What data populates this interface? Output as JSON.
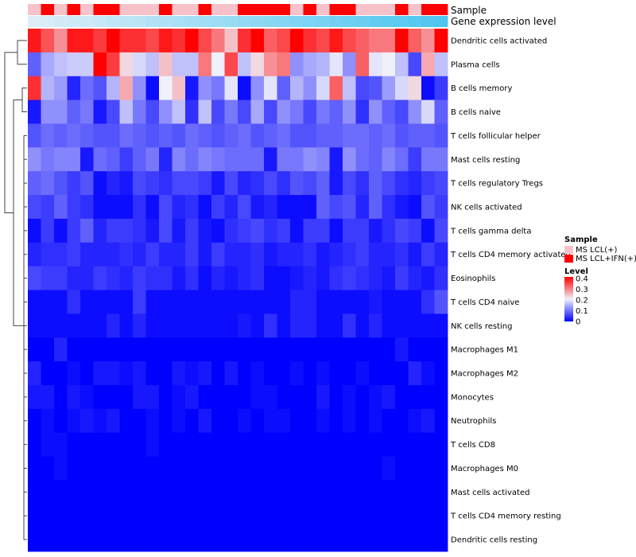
{
  "chart_data": {
    "type": "heatmap",
    "title": "",
    "annotation_tracks": [
      {
        "label": "Sample"
      },
      {
        "label": "Gene expression level"
      }
    ],
    "sample_groups": [
      "LCL",
      "IFN",
      "LCL",
      "IFN",
      "LCL",
      "IFN",
      "IFN",
      "LCL",
      "LCL",
      "LCL",
      "IFN",
      "LCL",
      "LCL",
      "IFN",
      "LCL",
      "LCL",
      "IFN",
      "IFN",
      "IFN",
      "IFN",
      "LCL",
      "IFN",
      "LCL",
      "IFN",
      "IFN",
      "LCL",
      "LCL",
      "LCL",
      "IFN",
      "LCL",
      "IFN",
      "IFN"
    ],
    "rows": [
      "Dendritic cells activated",
      "Plasma cells",
      "B cells memory",
      "B cells naive",
      "T cells follicular helper",
      "Mast cells resting",
      "T cells regulatory  Tregs",
      "NK cells activated",
      "T cells gamma delta",
      "T cells CD4 memory activated",
      "Eosinophils",
      "T cells CD4 naive",
      "NK cells resting",
      "Macrophages M1",
      "Macrophages M2",
      "Monocytes",
      "Neutrophils",
      "T cells CD8",
      "Macrophages M0",
      "Mast cells activated",
      "T cells CD4 memory resting",
      "Dendritic cells resting"
    ],
    "values": [
      [
        0.38,
        0.33,
        0.28,
        0.38,
        0.38,
        0.35,
        0.4,
        0.36,
        0.36,
        0.34,
        0.38,
        0.36,
        0.4,
        0.34,
        0.3,
        0.24,
        0.36,
        0.4,
        0.32,
        0.34,
        0.4,
        0.36,
        0.34,
        0.38,
        0.34,
        0.32,
        0.3,
        0.3,
        0.4,
        0.32,
        0.28,
        0.4
      ],
      [
        0.08,
        0.14,
        0.16,
        0.17,
        0.17,
        0.4,
        0.35,
        0.22,
        0.18,
        0.16,
        0.24,
        0.16,
        0.16,
        0.3,
        0.2,
        0.34,
        0.16,
        0.22,
        0.28,
        0.3,
        0.12,
        0.14,
        0.15,
        0.19,
        0.12,
        0.32,
        0.19,
        0.2,
        0.16,
        0.06,
        0.26,
        0.16
      ],
      [
        0.36,
        0.15,
        0.13,
        0.03,
        0.09,
        0.07,
        0.15,
        0.26,
        0.12,
        0.01,
        0.2,
        0.24,
        0.02,
        0.12,
        0.1,
        0.19,
        0.01,
        0.12,
        0.19,
        0.08,
        0.15,
        0.12,
        0.18,
        0.32,
        0.16,
        0.06,
        0.07,
        0.13,
        0.18,
        0.22,
        0.01,
        0.05
      ],
      [
        0.02,
        0.12,
        0.12,
        0.08,
        0.1,
        0.02,
        0.06,
        0.16,
        0.1,
        0.06,
        0.12,
        0.16,
        0.04,
        0.16,
        0.06,
        0.1,
        0.06,
        0.14,
        0.06,
        0.12,
        0.1,
        0.06,
        0.1,
        0.08,
        0.12,
        0.04,
        0.12,
        0.08,
        0.06,
        0.12,
        0.18,
        0.08
      ],
      [
        0.07,
        0.09,
        0.08,
        0.09,
        0.08,
        0.07,
        0.07,
        0.09,
        0.08,
        0.07,
        0.08,
        0.07,
        0.09,
        0.08,
        0.07,
        0.08,
        0.09,
        0.07,
        0.08,
        0.09,
        0.07,
        0.07,
        0.08,
        0.08,
        0.09,
        0.09,
        0.08,
        0.09,
        0.07,
        0.08,
        0.08,
        0.07
      ],
      [
        0.12,
        0.1,
        0.11,
        0.11,
        0.02,
        0.09,
        0.08,
        0.05,
        0.08,
        0.1,
        0.03,
        0.11,
        0.09,
        0.11,
        0.1,
        0.09,
        0.09,
        0.09,
        0.02,
        0.1,
        0.1,
        0.12,
        0.11,
        0.02,
        0.12,
        0.09,
        0.08,
        0.11,
        0.09,
        0.05,
        0.1,
        0.1
      ],
      [
        0.08,
        0.09,
        0.07,
        0.05,
        0.07,
        0.01,
        0.03,
        0.02,
        0.06,
        0.05,
        0.04,
        0.06,
        0.06,
        0.05,
        0.02,
        0.06,
        0.03,
        0.04,
        0.06,
        0.04,
        0.07,
        0.06,
        0.08,
        0.02,
        0.06,
        0.04,
        0.08,
        0.06,
        0.04,
        0.03,
        0.05,
        0.06
      ],
      [
        0.06,
        0.05,
        0.08,
        0.05,
        0.04,
        0.01,
        0.01,
        0.01,
        0.04,
        0.01,
        0.06,
        0.03,
        0.04,
        0.01,
        0.05,
        0.03,
        0.06,
        0.02,
        0.03,
        0.01,
        0.01,
        0.01,
        0.08,
        0.06,
        0.07,
        0.03,
        0.08,
        0.04,
        0.02,
        0.01,
        0.07,
        0.05
      ],
      [
        0.01,
        0.05,
        0.01,
        0.05,
        0.08,
        0.03,
        0.05,
        0.05,
        0.04,
        0.02,
        0.06,
        0.02,
        0.05,
        0.02,
        0.01,
        0.04,
        0.05,
        0.06,
        0.04,
        0.05,
        0.01,
        0.05,
        0.05,
        0.01,
        0.05,
        0.05,
        0.02,
        0.04,
        0.06,
        0.05,
        0.01,
        0.06
      ],
      [
        0.03,
        0.04,
        0.04,
        0.05,
        0.03,
        0.03,
        0.03,
        0.04,
        0.03,
        0.05,
        0.03,
        0.03,
        0.05,
        0.02,
        0.05,
        0.03,
        0.03,
        0.04,
        0.02,
        0.03,
        0.03,
        0.04,
        0.02,
        0.03,
        0.04,
        0.05,
        0.03,
        0.03,
        0.04,
        0.02,
        0.05,
        0.03
      ],
      [
        0.06,
        0.05,
        0.05,
        0.03,
        0.03,
        0.05,
        0.04,
        0.03,
        0.05,
        0.04,
        0.04,
        0.02,
        0.04,
        0.01,
        0.03,
        0.02,
        0.03,
        0.04,
        0.01,
        0.01,
        0.02,
        0.03,
        0.02,
        0.04,
        0.05,
        0.04,
        0.03,
        0.02,
        0.05,
        0.03,
        0.02,
        0.04
      ],
      [
        0.01,
        0.01,
        0.01,
        0.04,
        0.01,
        0.01,
        0.01,
        0.01,
        0.05,
        0.01,
        0.01,
        0.01,
        0.01,
        0.01,
        0.01,
        0.01,
        0.01,
        0.01,
        0.01,
        0.01,
        0.03,
        0.03,
        0.01,
        0.01,
        0.01,
        0.01,
        0.02,
        0.01,
        0.01,
        0.01,
        0.04,
        0.07
      ],
      [
        0.01,
        0.01,
        0.01,
        0.01,
        0.01,
        0.01,
        0.03,
        0.01,
        0.03,
        0.01,
        0.01,
        0.01,
        0.01,
        0.01,
        0.01,
        0.01,
        0.02,
        0.01,
        0.04,
        0.01,
        0.03,
        0.03,
        0.01,
        0.01,
        0.04,
        0.01,
        0.03,
        0.01,
        0.01,
        0.01,
        0.01,
        0.01
      ],
      [
        0.0,
        0.0,
        0.03,
        0.0,
        0.0,
        0.0,
        0.0,
        0.0,
        0.0,
        0.0,
        0.0,
        0.0,
        0.0,
        0.0,
        0.0,
        0.0,
        0.0,
        0.0,
        0.0,
        0.0,
        0.0,
        0.0,
        0.0,
        0.0,
        0.0,
        0.0,
        0.0,
        0.0,
        0.02,
        0.0,
        0.0,
        0.0
      ],
      [
        0.03,
        0.0,
        0.0,
        0.01,
        0.0,
        0.02,
        0.02,
        0.01,
        0.02,
        0.0,
        0.0,
        0.02,
        0.01,
        0.02,
        0.0,
        0.02,
        0.0,
        0.01,
        0.0,
        0.0,
        0.01,
        0.0,
        0.01,
        0.0,
        0.0,
        0.01,
        0.0,
        0.0,
        0.0,
        0.03,
        0.01,
        0.0
      ],
      [
        0.02,
        0.02,
        0.0,
        0.02,
        0.01,
        0.0,
        0.0,
        0.0,
        0.02,
        0.02,
        0.0,
        0.01,
        0.02,
        0.0,
        0.0,
        0.0,
        0.0,
        0.01,
        0.01,
        0.0,
        0.0,
        0.0,
        0.02,
        0.0,
        0.01,
        0.0,
        0.01,
        0.02,
        0.0,
        0.0,
        0.0,
        0.0
      ],
      [
        0.0,
        0.01,
        0.0,
        0.01,
        0.02,
        0.01,
        0.02,
        0.0,
        0.0,
        0.01,
        0.0,
        0.01,
        0.0,
        0.02,
        0.0,
        0.0,
        0.01,
        0.0,
        0.01,
        0.01,
        0.0,
        0.0,
        0.01,
        0.0,
        0.01,
        0.0,
        0.01,
        0.0,
        0.0,
        0.01,
        0.02,
        0.0
      ],
      [
        0.0,
        0.01,
        0.01,
        0.0,
        0.0,
        0.0,
        0.0,
        0.0,
        0.0,
        0.01,
        0.0,
        0.0,
        0.0,
        0.0,
        0.0,
        0.0,
        0.0,
        0.0,
        0.0,
        0.0,
        0.0,
        0.0,
        0.0,
        0.0,
        0.0,
        0.0,
        0.0,
        0.0,
        0.0,
        0.0,
        0.0,
        0.0
      ],
      [
        0.0,
        0.0,
        0.01,
        0.0,
        0.0,
        0.0,
        0.0,
        0.0,
        0.0,
        0.0,
        0.0,
        0.0,
        0.0,
        0.0,
        0.0,
        0.0,
        0.0,
        0.0,
        0.0,
        0.0,
        0.0,
        0.0,
        0.0,
        0.0,
        0.0,
        0.0,
        0.0,
        0.01,
        0.0,
        0.0,
        0.0,
        0.0
      ],
      [
        0.0,
        0.0,
        0.0,
        0.0,
        0.0,
        0.0,
        0.0,
        0.0,
        0.0,
        0.0,
        0.0,
        0.0,
        0.0,
        0.0,
        0.0,
        0.0,
        0.0,
        0.0,
        0.0,
        0.0,
        0.0,
        0.0,
        0.0,
        0.0,
        0.0,
        0.0,
        0.0,
        0.0,
        0.0,
        0.0,
        0.0,
        0.0
      ],
      [
        0.0,
        0.0,
        0.0,
        0.0,
        0.0,
        0.0,
        0.0,
        0.0,
        0.0,
        0.0,
        0.0,
        0.0,
        0.0,
        0.0,
        0.0,
        0.0,
        0.0,
        0.0,
        0.0,
        0.0,
        0.0,
        0.0,
        0.0,
        0.0,
        0.0,
        0.0,
        0.0,
        0.0,
        0.0,
        0.0,
        0.0,
        0.0
      ],
      [
        0.0,
        0.0,
        0.0,
        0.0,
        0.0,
        0.0,
        0.0,
        0.0,
        0.0,
        0.0,
        0.0,
        0.0,
        0.0,
        0.0,
        0.0,
        0.0,
        0.0,
        0.0,
        0.0,
        0.0,
        0.0,
        0.0,
        0.0,
        0.0,
        0.0,
        0.0,
        0.0,
        0.0,
        0.0,
        0.0,
        0.0,
        0.0
      ]
    ],
    "color_scale": {
      "min": 0,
      "mid": 0.2,
      "max": 0.4,
      "colors": [
        "#0000ff",
        "#f0f0fa",
        "#ff0000"
      ]
    },
    "expression_track": {
      "range": [
        0,
        1
      ],
      "colors": [
        "#ddeef8",
        "#4ec6f0"
      ]
    },
    "legend_sample": {
      "title": "Sample",
      "items": [
        {
          "label": "MS LCL(+)",
          "key": "LCL",
          "color": "#f7c2ca"
        },
        {
          "label": "MS LCL+IFN(+)",
          "key": "IFN",
          "color": "#fe0000"
        }
      ]
    },
    "legend_level": {
      "title": "Level",
      "ticks": [
        "0.4",
        "0.3",
        "0.2",
        "0.1",
        "0"
      ]
    }
  }
}
